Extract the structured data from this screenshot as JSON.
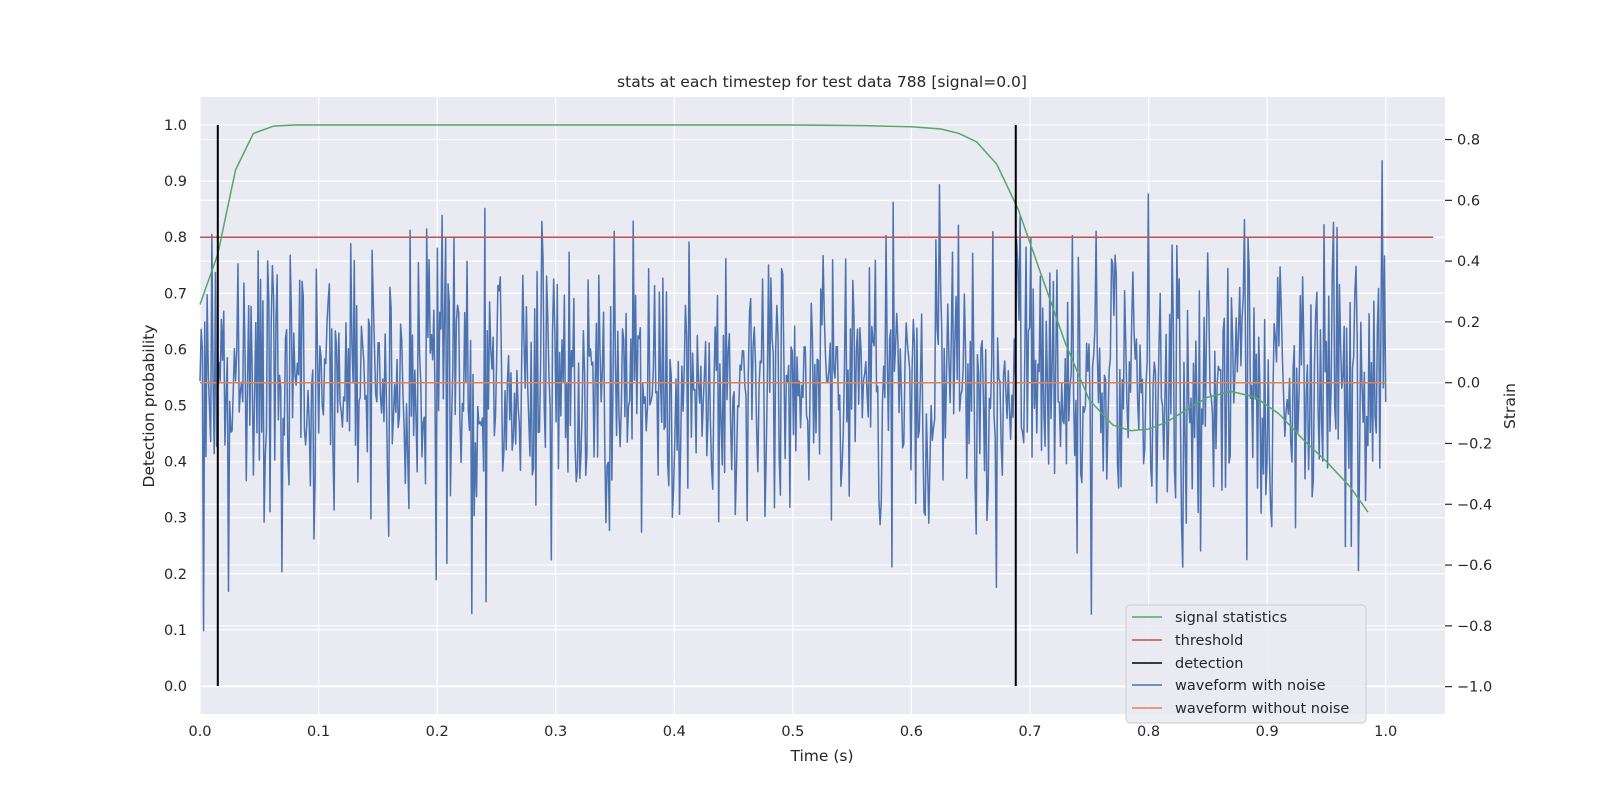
{
  "chart_data": {
    "type": "line",
    "title": "stats at each timestep for test data 788 [signal=0.0]",
    "xlabel": "Time (s)",
    "ylabel": "Detection probability",
    "y2label": "Strain",
    "xlim": [
      0.0,
      1.05
    ],
    "ylim": [
      -0.05,
      1.05
    ],
    "y2lim": [
      -1.09,
      0.94
    ],
    "xticks": [
      "0.0",
      "0.1",
      "0.2",
      "0.3",
      "0.4",
      "0.5",
      "0.6",
      "0.7",
      "0.8",
      "0.9",
      "1.0"
    ],
    "yticks": [
      "0.0",
      "0.1",
      "0.2",
      "0.3",
      "0.4",
      "0.5",
      "0.6",
      "0.7",
      "0.8",
      "0.9",
      "1.0"
    ],
    "y2ticks": [
      "−1.0",
      "−0.8",
      "−0.6",
      "−0.4",
      "−0.2",
      "0.0",
      "0.2",
      "0.4",
      "0.6",
      "0.8"
    ],
    "grid": true,
    "legend_position": "lower right",
    "colors": {
      "background": "#eaeaf2",
      "grid": "#ffffff",
      "signal_statistics": "#55a868",
      "threshold": "#c44e52",
      "detection": "#000000",
      "waveform_with_noise": "#4c72b0",
      "waveform_without_noise": "#dd8452"
    },
    "legend": [
      "signal statistics",
      "threshold",
      "detection",
      "waveform with noise",
      "waveform without noise"
    ],
    "series": [
      {
        "name": "signal statistics",
        "axis": "left",
        "x": [
          0.0,
          0.015,
          0.03,
          0.045,
          0.062,
          0.08,
          0.1,
          0.2,
          0.3,
          0.4,
          0.5,
          0.56,
          0.6,
          0.625,
          0.64,
          0.655,
          0.672,
          0.69,
          0.71,
          0.73,
          0.75,
          0.77,
          0.785,
          0.8,
          0.815,
          0.83,
          0.85,
          0.87,
          0.89,
          0.91,
          0.93,
          0.95,
          0.97,
          0.985
        ],
        "y": [
          0.68,
          0.77,
          0.92,
          0.985,
          0.998,
          1.0,
          1.0,
          1.0,
          1.0,
          1.0,
          1.0,
          0.999,
          0.997,
          0.993,
          0.985,
          0.97,
          0.93,
          0.85,
          0.73,
          0.61,
          0.51,
          0.465,
          0.455,
          0.458,
          0.47,
          0.49,
          0.515,
          0.525,
          0.515,
          0.485,
          0.44,
          0.4,
          0.355,
          0.31
        ]
      },
      {
        "name": "threshold",
        "axis": "left",
        "x": [
          0.0,
          1.04
        ],
        "y": [
          0.8,
          0.8
        ]
      },
      {
        "name": "detection",
        "axis": "left",
        "x": [
          0.015,
          0.688
        ],
        "y": [
          1.0,
          1.0
        ]
      },
      {
        "name": "waveform with noise",
        "axis": "right",
        "x_range": [
          0.0,
          1.0
        ],
        "n": 1000,
        "mean": 0.0,
        "std": 0.24,
        "seed": 788
      },
      {
        "name": "waveform without noise",
        "axis": "right",
        "x": [
          0.0,
          1.0
        ],
        "y": [
          0.0,
          0.0
        ]
      }
    ]
  }
}
